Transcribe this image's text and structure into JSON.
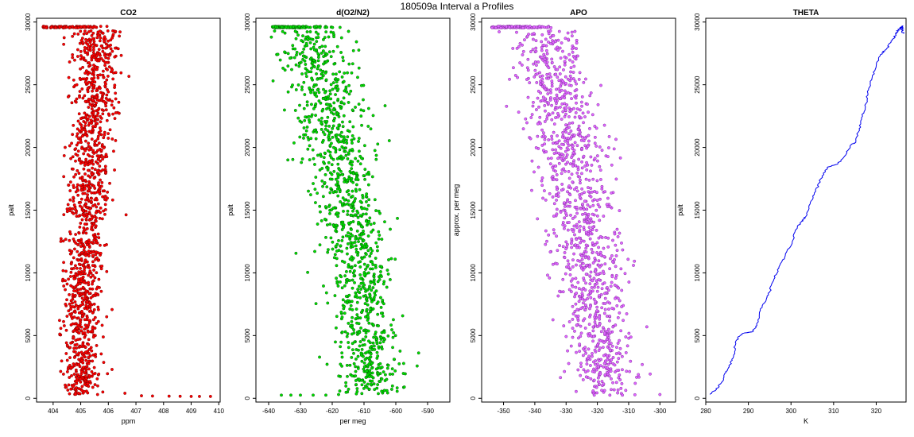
{
  "figure": {
    "title": "180509a   Interval a Profiles"
  },
  "chart_data": [
    {
      "id": "co2",
      "type": "scatter",
      "title": "CO2",
      "xlabel": "ppm",
      "ylabel": "palt",
      "xlim": [
        403.4,
        410.05
      ],
      "ylim": [
        -300,
        30300
      ],
      "xticks": [
        404,
        405,
        406,
        407,
        408,
        409,
        410
      ],
      "yticks": [
        0,
        5000,
        10000,
        15000,
        20000,
        25000,
        30000
      ],
      "point_color": "#ff0000",
      "edge_color": "#6b0000",
      "generator": {
        "seed": 11,
        "n": 1300,
        "center_bottom": 405.0,
        "center_top": 405.7,
        "center_mid": 405.2,
        "spread_low": 0.3,
        "spread_high": 0.45,
        "top_cluster": {
          "alt": 29600,
          "x_range": [
            403.6,
            406.2
          ],
          "n": 90
        },
        "bottom_tail": [
          {
            "x": 405.8,
            "y": 500
          },
          {
            "x": 406.6,
            "y": 400
          },
          {
            "x": 407.2,
            "y": 200
          },
          {
            "x": 407.6,
            "y": 180
          },
          {
            "x": 408.2,
            "y": 170
          },
          {
            "x": 408.6,
            "y": 160
          },
          {
            "x": 409.0,
            "y": 150
          },
          {
            "x": 409.3,
            "y": 150
          },
          {
            "x": 409.7,
            "y": 150
          }
        ]
      }
    },
    {
      "id": "do2n2",
      "type": "scatter",
      "title": "d(O2/N2)",
      "xlabel": "per meg",
      "ylabel": "palt",
      "xlim": [
        -644,
        -583
      ],
      "ylim": [
        -300,
        30300
      ],
      "xticks": [
        -640,
        -630,
        -620,
        -610,
        -600,
        -590
      ],
      "yticks": [
        0,
        5000,
        10000,
        15000,
        20000,
        25000,
        30000
      ],
      "point_color": "#00e000",
      "edge_color": "#004d00",
      "generator": {
        "seed": 23,
        "n": 1200,
        "center_bottom": -607,
        "center_top": -628,
        "spread_low": 5.0,
        "spread_high": 5.5,
        "top_cluster": {
          "alt": 29600,
          "x_range": [
            -639,
            -617
          ],
          "n": 110
        },
        "bottom_tail": [
          {
            "x": -636,
            "y": 250
          },
          {
            "x": -633,
            "y": 250
          },
          {
            "x": -630,
            "y": 250
          },
          {
            "x": -626,
            "y": 250
          },
          {
            "x": -622,
            "y": 250
          },
          {
            "x": -618,
            "y": 300
          }
        ]
      }
    },
    {
      "id": "apo",
      "type": "scatter",
      "title": "APO",
      "xlabel": "",
      "ylabel": "approx. per meg",
      "xlim": [
        -357,
        -295
      ],
      "ylim": [
        -300,
        30300
      ],
      "xticks": [
        -350,
        -340,
        -330,
        -320,
        -310,
        -300
      ],
      "yticks": [
        0,
        5000,
        10000,
        15000,
        20000,
        25000,
        30000
      ],
      "point_color": "#e066ff",
      "edge_color": "#7a2a99",
      "generator": {
        "seed": 37,
        "n": 1200,
        "center_bottom": -318,
        "center_top": -338,
        "spread_low": 5.0,
        "spread_high": 6.0,
        "top_cluster": {
          "alt": 29600,
          "x_range": [
            -354,
            -330
          ],
          "n": 110
        },
        "bottom_tail": [
          {
            "x": -321,
            "y": 250
          },
          {
            "x": -316,
            "y": 250
          },
          {
            "x": -312,
            "y": 250
          },
          {
            "x": -308,
            "y": 280
          },
          {
            "x": -300,
            "y": 300
          }
        ]
      }
    },
    {
      "id": "theta",
      "type": "line",
      "title": "THETA",
      "xlabel": "K",
      "ylabel": "palt",
      "xlim": [
        280,
        327
      ],
      "ylim": [
        -300,
        30300
      ],
      "xticks": [
        280,
        290,
        300,
        310,
        320
      ],
      "yticks": [
        0,
        5000,
        10000,
        15000,
        20000,
        25000,
        30000
      ],
      "line_color": "#0000ee",
      "points": [
        {
          "x": 281.0,
          "y": 300
        },
        {
          "x": 282.5,
          "y": 700
        },
        {
          "x": 283.8,
          "y": 1300
        },
        {
          "x": 284.5,
          "y": 2000
        },
        {
          "x": 285.5,
          "y": 2500
        },
        {
          "x": 286.4,
          "y": 3200
        },
        {
          "x": 286.9,
          "y": 4200
        },
        {
          "x": 287.6,
          "y": 4900
        },
        {
          "x": 289.0,
          "y": 5200
        },
        {
          "x": 291.0,
          "y": 5300
        },
        {
          "x": 292.0,
          "y": 5800
        },
        {
          "x": 292.8,
          "y": 7000
        },
        {
          "x": 294.3,
          "y": 8000
        },
        {
          "x": 295.0,
          "y": 8500
        },
        {
          "x": 296.0,
          "y": 9500
        },
        {
          "x": 297.2,
          "y": 10500
        },
        {
          "x": 298.5,
          "y": 11200
        },
        {
          "x": 300.3,
          "y": 12500
        },
        {
          "x": 301.5,
          "y": 13700
        },
        {
          "x": 302.5,
          "y": 14100
        },
        {
          "x": 303.5,
          "y": 14500
        },
        {
          "x": 304.5,
          "y": 15500
        },
        {
          "x": 305.8,
          "y": 16500
        },
        {
          "x": 307.0,
          "y": 17500
        },
        {
          "x": 308.5,
          "y": 18400
        },
        {
          "x": 311.0,
          "y": 18700
        },
        {
          "x": 313.0,
          "y": 19500
        },
        {
          "x": 314.0,
          "y": 20200
        },
        {
          "x": 315.2,
          "y": 20400
        },
        {
          "x": 316.0,
          "y": 21500
        },
        {
          "x": 316.8,
          "y": 22500
        },
        {
          "x": 317.6,
          "y": 23500
        },
        {
          "x": 318.2,
          "y": 24600
        },
        {
          "x": 319.0,
          "y": 25500
        },
        {
          "x": 320.0,
          "y": 26500
        },
        {
          "x": 321.0,
          "y": 27400
        },
        {
          "x": 322.5,
          "y": 27900
        },
        {
          "x": 323.5,
          "y": 28400
        },
        {
          "x": 324.6,
          "y": 29000
        },
        {
          "x": 325.2,
          "y": 29400
        },
        {
          "x": 325.8,
          "y": 29550
        },
        {
          "x": 326.3,
          "y": 29700
        },
        {
          "x": 326.0,
          "y": 29200
        },
        {
          "x": 326.5,
          "y": 29100
        }
      ]
    }
  ]
}
